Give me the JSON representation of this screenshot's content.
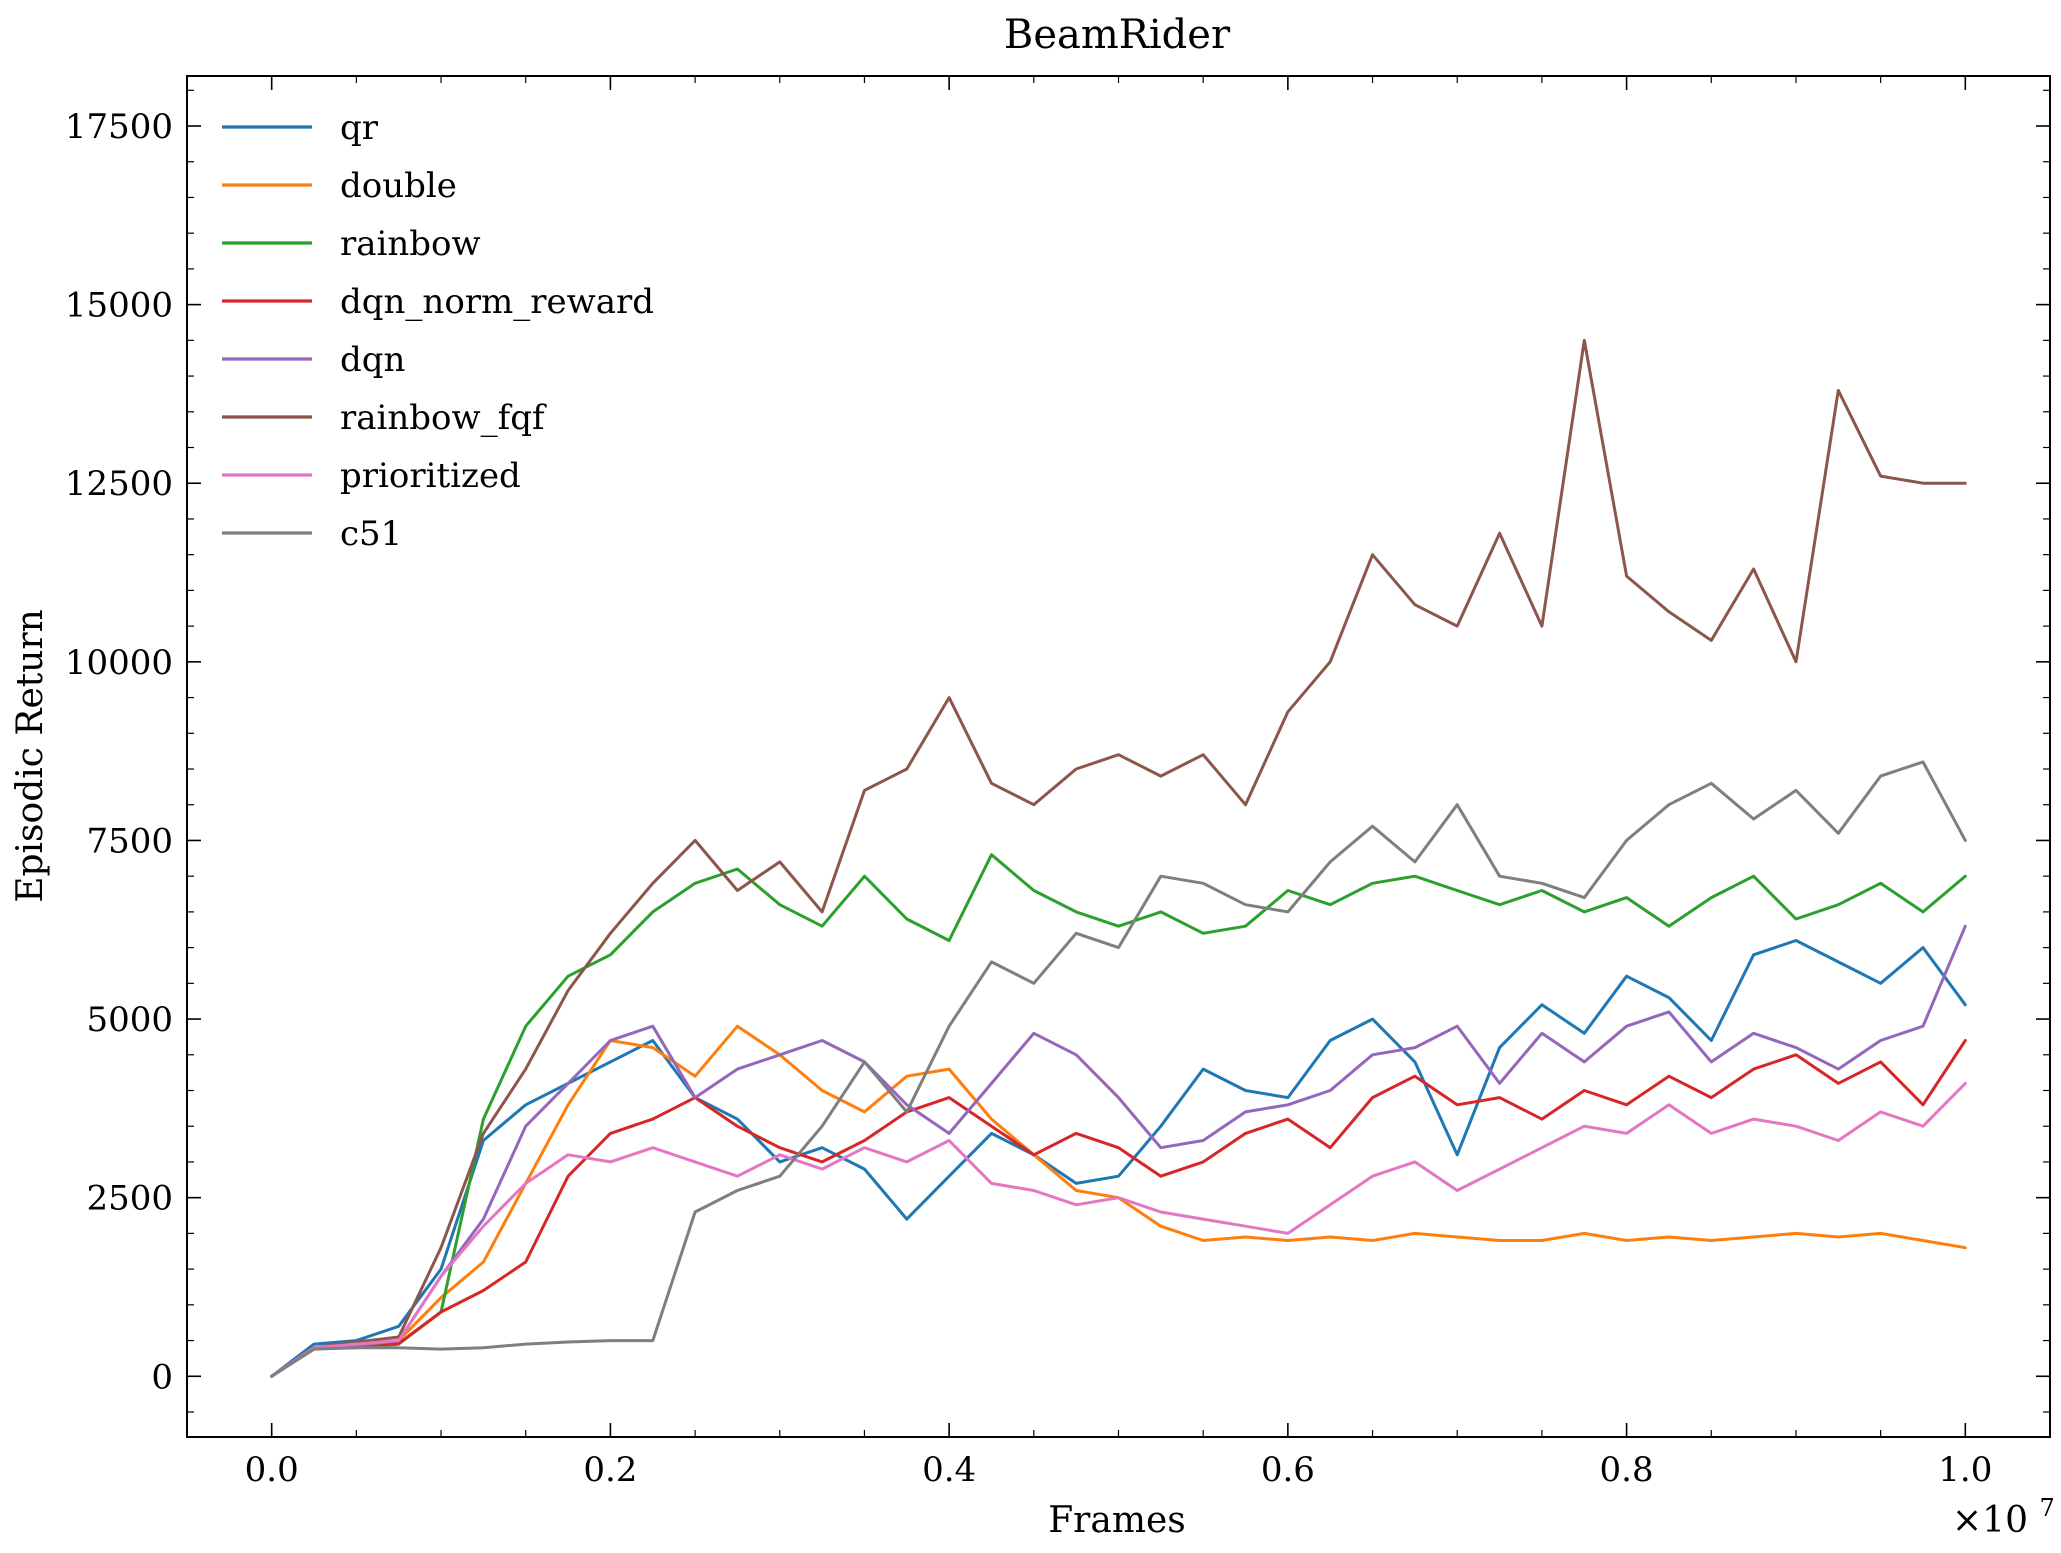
{
  "chart_data": {
    "type": "line",
    "title": "BeamRider",
    "xlabel": "Frames",
    "ylabel": "Episodic Return",
    "x_offset_label": "×10",
    "x_offset_exponent": "7",
    "xlim": [
      -0.05,
      1.05
    ],
    "ylim": [
      -850,
      18200
    ],
    "x_ticks": [
      0.0,
      0.2,
      0.4,
      0.6,
      0.8,
      1.0
    ],
    "x_tick_labels": [
      "0.0",
      "0.2",
      "0.4",
      "0.6",
      "0.8",
      "1.0"
    ],
    "y_ticks": [
      0,
      2500,
      5000,
      7500,
      10000,
      12500,
      15000,
      17500
    ],
    "y_tick_labels": [
      "0",
      "2500",
      "5000",
      "7500",
      "10000",
      "12500",
      "15000",
      "17500"
    ],
    "grid": false,
    "legend_position": "top-left",
    "x": [
      0.0,
      0.025,
      0.05,
      0.075,
      0.1,
      0.125,
      0.15,
      0.175,
      0.2,
      0.225,
      0.25,
      0.275,
      0.3,
      0.325,
      0.35,
      0.375,
      0.4,
      0.425,
      0.45,
      0.475,
      0.5,
      0.525,
      0.55,
      0.575,
      0.6,
      0.625,
      0.65,
      0.675,
      0.7,
      0.725,
      0.75,
      0.775,
      0.8,
      0.825,
      0.85,
      0.875,
      0.9,
      0.925,
      0.95,
      0.975,
      1.0
    ],
    "series": [
      {
        "name": "qr",
        "color": "#1f77b4",
        "values": [
          0,
          450,
          500,
          700,
          1500,
          3300,
          3800,
          4100,
          4400,
          4700,
          3900,
          3600,
          3000,
          3200,
          2900,
          2200,
          2800,
          3400,
          3100,
          2700,
          2800,
          3500,
          4300,
          4000,
          3900,
          4700,
          5000,
          4400,
          3100,
          4600,
          5200,
          4800,
          5600,
          5300,
          4700,
          5900,
          6100,
          5800,
          5500,
          6000,
          5200
        ]
      },
      {
        "name": "double",
        "color": "#ff7f0e",
        "values": [
          0,
          380,
          450,
          500,
          1100,
          1600,
          2700,
          3800,
          4700,
          4600,
          4200,
          4900,
          4500,
          4000,
          3700,
          4200,
          4300,
          3600,
          3100,
          2600,
          2500,
          2100,
          1900,
          1950,
          1900,
          1950,
          1900,
          2000,
          1950,
          1900,
          1900,
          2000,
          1900,
          1950,
          1900,
          1950,
          2000,
          1950,
          2000,
          1900,
          1800
        ]
      },
      {
        "name": "rainbow",
        "color": "#2ca02c",
        "values": [
          0,
          400,
          400,
          450,
          900,
          3600,
          4900,
          5600,
          5900,
          6500,
          6900,
          7100,
          6600,
          6300,
          7000,
          6400,
          6100,
          7300,
          6800,
          6500,
          6300,
          6500,
          6200,
          6300,
          6800,
          6600,
          6900,
          7000,
          6800,
          6600,
          6800,
          6500,
          6700,
          6300,
          6700,
          7000,
          6400,
          6600,
          6900,
          6500,
          7000
        ]
      },
      {
        "name": "dqn_norm_reward",
        "color": "#d62728",
        "values": [
          0,
          400,
          420,
          460,
          900,
          1200,
          1600,
          2800,
          3400,
          3600,
          3900,
          3500,
          3200,
          3000,
          3300,
          3700,
          3900,
          3500,
          3100,
          3400,
          3200,
          2800,
          3000,
          3400,
          3600,
          3200,
          3900,
          4200,
          3800,
          3900,
          3600,
          4000,
          3800,
          4200,
          3900,
          4300,
          4500,
          4100,
          4400,
          3800,
          4700
        ]
      },
      {
        "name": "dqn",
        "color": "#9467bd",
        "values": [
          0,
          400,
          430,
          500,
          1400,
          2200,
          3500,
          4100,
          4700,
          4900,
          3900,
          4300,
          4500,
          4700,
          4400,
          3800,
          3400,
          4100,
          4800,
          4500,
          3900,
          3200,
          3300,
          3700,
          3800,
          4000,
          4500,
          4600,
          4900,
          4100,
          4800,
          4400,
          4900,
          5100,
          4400,
          4800,
          4600,
          4300,
          4700,
          4900,
          6300
        ]
      },
      {
        "name": "rainbow_fqf",
        "color": "#8c564b",
        "values": [
          0,
          400,
          480,
          550,
          1800,
          3400,
          4300,
          5400,
          6200,
          6900,
          7500,
          6800,
          7200,
          6500,
          8200,
          8500,
          9500,
          8300,
          8000,
          8500,
          8700,
          8400,
          8700,
          8000,
          9300,
          10000,
          11500,
          10800,
          10500,
          11800,
          10500,
          14500,
          11200,
          10700,
          10300,
          11300,
          10000,
          13800,
          12600,
          12500,
          12500
        ]
      },
      {
        "name": "prioritized",
        "color": "#e377c2",
        "values": [
          0,
          400,
          450,
          500,
          1400,
          2100,
          2700,
          3100,
          3000,
          3200,
          3000,
          2800,
          3100,
          2900,
          3200,
          3000,
          3300,
          2700,
          2600,
          2400,
          2500,
          2300,
          2200,
          2100,
          2000,
          2400,
          2800,
          3000,
          2600,
          2900,
          3200,
          3500,
          3400,
          3800,
          3400,
          3600,
          3500,
          3300,
          3700,
          3500,
          4100
        ]
      },
      {
        "name": "c51",
        "color": "#7f7f7f",
        "values": [
          0,
          380,
          400,
          400,
          380,
          400,
          450,
          480,
          500,
          500,
          2300,
          2600,
          2800,
          3500,
          4400,
          3700,
          4900,
          5800,
          5500,
          6200,
          6000,
          7000,
          6900,
          6600,
          6500,
          7200,
          7700,
          7200,
          8000,
          7000,
          6900,
          6700,
          7500,
          8000,
          8300,
          7800,
          8200,
          7600,
          8400,
          8600,
          7500
        ]
      }
    ]
  }
}
